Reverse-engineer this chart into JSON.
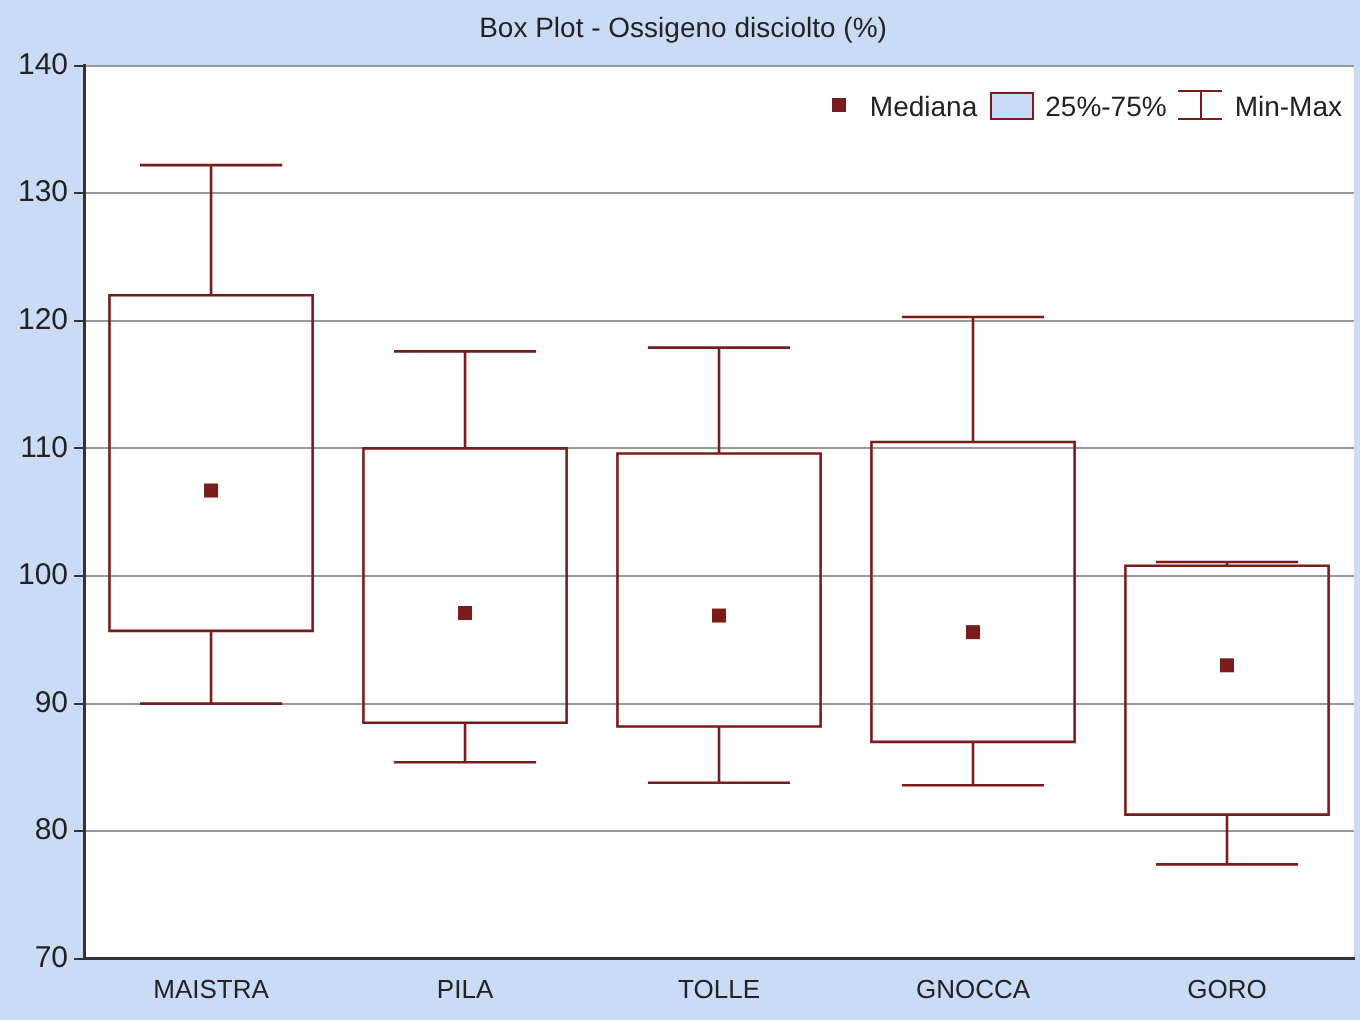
{
  "chart_data": {
    "type": "box",
    "title": "Box Plot - Ossigeno disciolto (%)",
    "categories": [
      "MAISTRA",
      "PILA",
      "TOLLE",
      "GNOCCA",
      "GORO"
    ],
    "boxes": [
      {
        "low": 90,
        "q1": 95.7,
        "median": 106.7,
        "q3": 122,
        "high": 132.2
      },
      {
        "low": 85.4,
        "q1": 88.5,
        "median": 97.1,
        "q3": 110,
        "high": 117.6
      },
      {
        "low": 83.8,
        "q1": 88.2,
        "median": 96.9,
        "q3": 109.6,
        "high": 117.9
      },
      {
        "low": 83.6,
        "q1": 87.0,
        "median": 95.6,
        "q3": 110.5,
        "high": 120.3
      },
      {
        "low": 77.4,
        "q1": 81.3,
        "median": 93.0,
        "q3": 100.8,
        "high": 101.1
      }
    ],
    "color": "#7b1c1c",
    "ylim": [
      70,
      140
    ],
    "yticks": [
      70,
      80,
      90,
      100,
      110,
      120,
      130,
      140
    ],
    "grid": "y",
    "marker": "square",
    "annotations": [
      "Mediana",
      "25%-75%",
      "Min-Max"
    ]
  }
}
